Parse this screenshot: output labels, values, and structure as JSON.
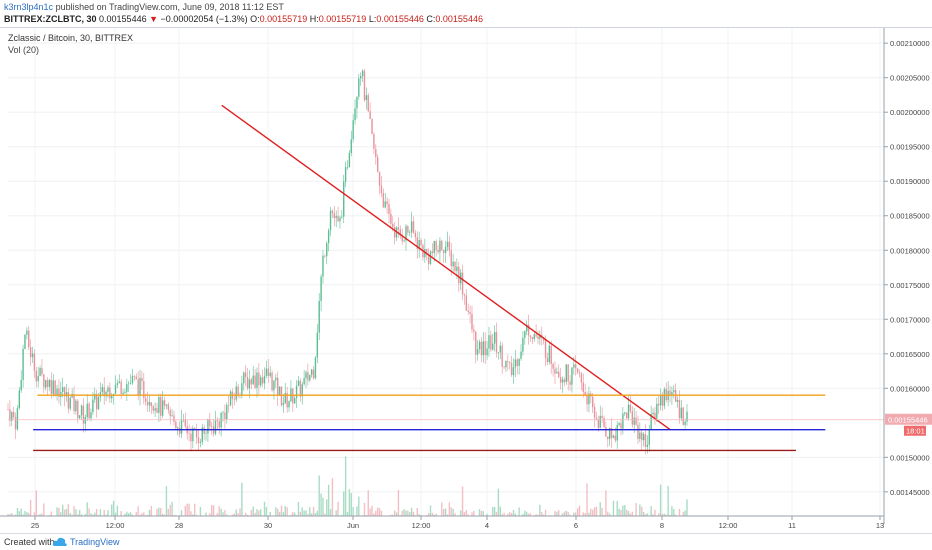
{
  "header": {
    "user": "k3rn3lp4n1c",
    "published": "published on TradingView.com, June 09, 2018 11:12 EST",
    "symbol": "BITTREX:ZCLBTC, 30",
    "last": "0.00155446",
    "change": "−0.00002054 (−1.3%)",
    "o_label": "O:",
    "o_value": "0.00155719",
    "h_label": "H:",
    "h_value": "0.00155719",
    "l_label": "L:",
    "l_value": "0.00155446",
    "c_label": "C:",
    "c_value": "0.00155446"
  },
  "legend": {
    "title": "Zclassic / Bitcoin, 30, BITTREX",
    "volume": "Vol (20)"
  },
  "footer": {
    "created_with": "Created with",
    "brand": "TradingView"
  },
  "colors": {
    "up": "#5bbd93",
    "down": "#e8919a",
    "trend_red": "#e02020",
    "orange": "#f2a21a",
    "blue": "#2323d8",
    "dark_red": "#9a1a1a",
    "price_tag": "#f0aab0",
    "timer_tag": "#ef6a6a"
  },
  "chart_data": {
    "type": "candlestick",
    "title": "Zclassic / Bitcoin, 30, BITTREX",
    "x_ticks": [
      "25",
      "12:00",
      "28",
      "30",
      "Jun",
      "12:00",
      "4",
      "6",
      "8",
      "12:00",
      "11",
      "13"
    ],
    "y_ticks": [
      "0.00210000",
      "0.00205000",
      "0.00200000",
      "0.00195000",
      "0.00190000",
      "0.00185000",
      "0.00180000",
      "0.00175000",
      "0.00170000",
      "0.00165000",
      "0.00160000",
      "0.00150000",
      "0.00145000"
    ],
    "y_range": [
      0.001415,
      0.002122
    ],
    "last_price_label": "0.00155446",
    "timer_label": "18:01",
    "close_path": [
      {
        "t": 0,
        "p": 0.00157
      },
      {
        "t": 2,
        "p": 0.00155
      },
      {
        "t": 4,
        "p": 0.00168
      },
      {
        "t": 7,
        "p": 0.00162
      },
      {
        "t": 12,
        "p": 0.0016
      },
      {
        "t": 18,
        "p": 0.00156
      },
      {
        "t": 24,
        "p": 0.0016
      },
      {
        "t": 30,
        "p": 0.00161
      },
      {
        "t": 35,
        "p": 0.00158
      },
      {
        "t": 40,
        "p": 0.00155
      },
      {
        "t": 45,
        "p": 0.00153
      },
      {
        "t": 50,
        "p": 0.00155
      },
      {
        "t": 56,
        "p": 0.00161
      },
      {
        "t": 62,
        "p": 0.00162
      },
      {
        "t": 66,
        "p": 0.00158
      },
      {
        "t": 70,
        "p": 0.0016
      },
      {
        "t": 73,
        "p": 0.00163
      },
      {
        "t": 75,
        "p": 0.00178
      },
      {
        "t": 77,
        "p": 0.00186
      },
      {
        "t": 79,
        "p": 0.00183
      },
      {
        "t": 82,
        "p": 0.00198
      },
      {
        "t": 84,
        "p": 0.00207
      },
      {
        "t": 86,
        "p": 0.00199
      },
      {
        "t": 88,
        "p": 0.00192
      },
      {
        "t": 90,
        "p": 0.00186
      },
      {
        "t": 93,
        "p": 0.00182
      },
      {
        "t": 96,
        "p": 0.00183
      },
      {
        "t": 100,
        "p": 0.00179
      },
      {
        "t": 104,
        "p": 0.00181
      },
      {
        "t": 108,
        "p": 0.00176
      },
      {
        "t": 112,
        "p": 0.00165
      },
      {
        "t": 116,
        "p": 0.00167
      },
      {
        "t": 120,
        "p": 0.00162
      },
      {
        "t": 124,
        "p": 0.00169
      },
      {
        "t": 128,
        "p": 0.00166
      },
      {
        "t": 132,
        "p": 0.00162
      },
      {
        "t": 136,
        "p": 0.00162
      },
      {
        "t": 140,
        "p": 0.00156
      },
      {
        "t": 144,
        "p": 0.00153
      },
      {
        "t": 148,
        "p": 0.00157
      },
      {
        "t": 152,
        "p": 0.00152
      },
      {
        "t": 155,
        "p": 0.00158
      },
      {
        "t": 158,
        "p": 0.0016
      },
      {
        "t": 160,
        "p": 0.00157
      },
      {
        "t": 162,
        "p": 0.00155446
      }
    ],
    "trendlines": [
      {
        "name": "descending-trendline",
        "color": "#e02020",
        "t1": 51,
        "p1": 0.00201,
        "t2": 158,
        "p2": 0.00154
      },
      {
        "name": "resistance-line",
        "color": "#f2a21a",
        "t1": 7,
        "p1": 0.00159,
        "t2": 195,
        "p2": 0.00159
      },
      {
        "name": "support-line",
        "color": "#2323d8",
        "t1": 6,
        "p1": 0.00154,
        "t2": 195,
        "p2": 0.00154
      },
      {
        "name": "floor-line",
        "color": "#9a1a1a",
        "t1": 6,
        "p1": 0.00151,
        "t2": 188,
        "p2": 0.00151
      }
    ]
  }
}
